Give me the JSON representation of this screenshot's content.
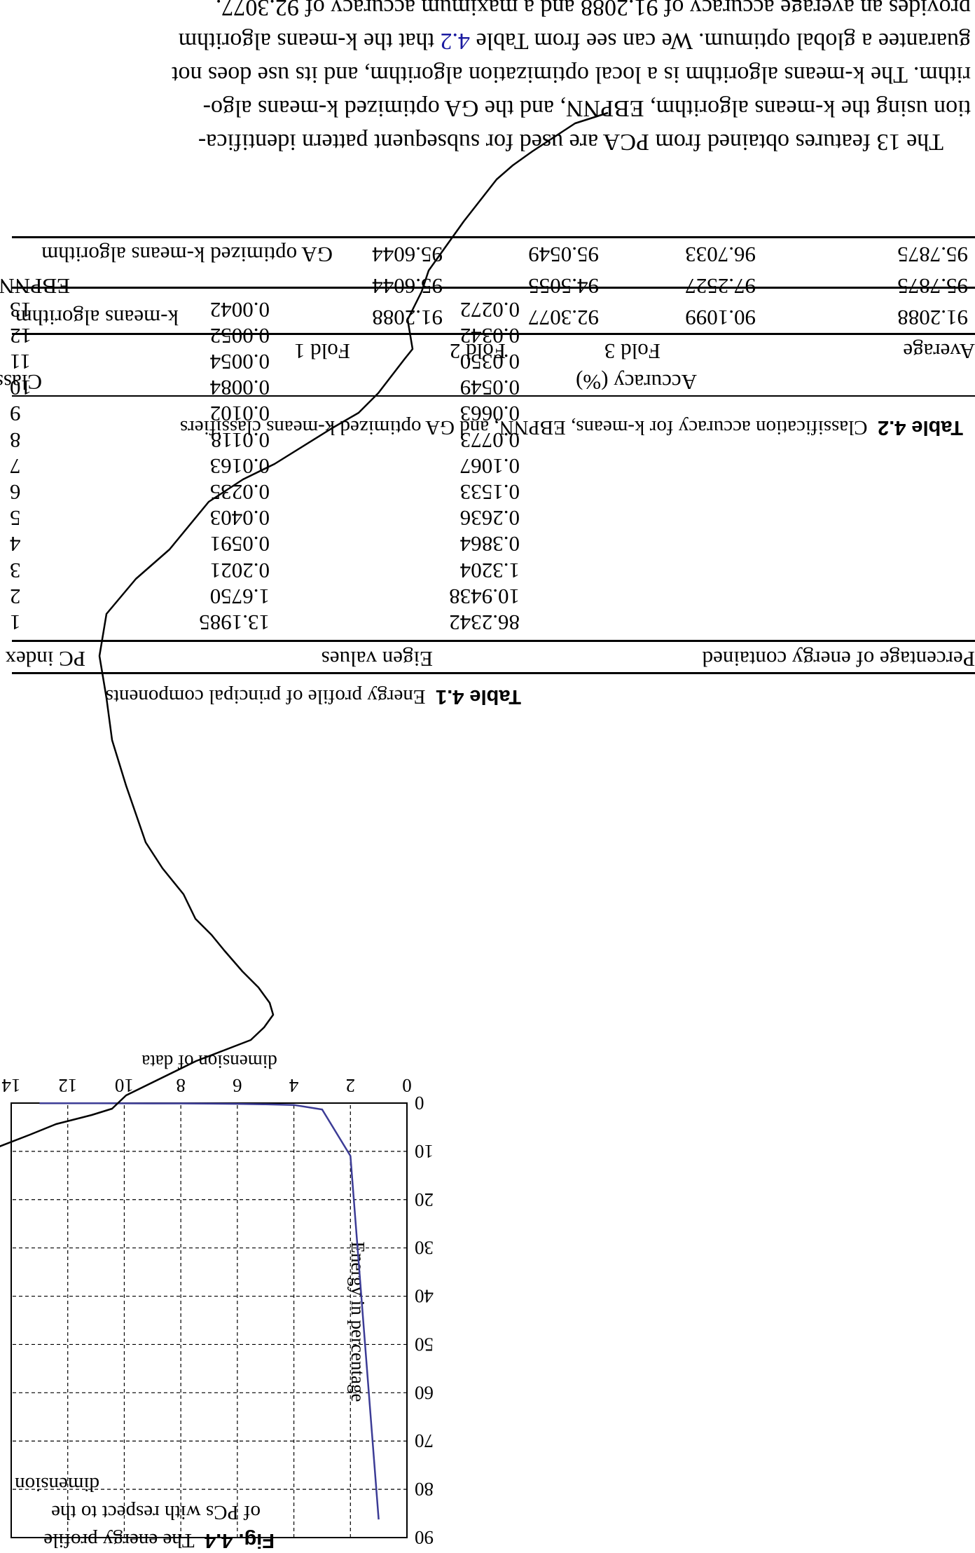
{
  "paragraph": {
    "line1": "The 13 features obtained from PCA are used for subsequent pattern identifica-",
    "line2": "tion using the k-means algorithm, EBPNN, and the GA optimized k-means algo-",
    "line3": "rithm. The k-means algorithm is a local optimization algorithm, and its use does not",
    "line4_pre": "guarantee a global optimum. We can see from Table ",
    "line4_ref": "4.2",
    "line4_post": " that the k-means algorithm",
    "line5": "provides an average accuracy of 91.2088 and a maximum accuracy of 92.3077."
  },
  "table2": {
    "caption_label": "Table 4.2",
    "caption_text": "Classification accuracy for k-means, EBPNN, and GA optimized k-means classifiers",
    "header_classifier": "Classifier",
    "header_accuracy": "Accuracy (%)",
    "subheaders": [
      "Fold 1",
      "Fold 2",
      "Fold 3",
      "Average"
    ],
    "rows": [
      {
        "name": "k-means algorithm",
        "values": [
          "91.2088",
          "92.3077",
          "90.1099",
          "91.2088"
        ]
      },
      {
        "name": "EBPNN",
        "values": [
          "95.6044",
          "94.5055",
          "97.2527",
          "95.7875"
        ]
      },
      {
        "name": "GA optimized k-means algorithm",
        "values": [
          "95.6044",
          "95.0549",
          "96.7033",
          "95.7875"
        ]
      }
    ]
  },
  "table1": {
    "caption_label": "Table 4.1",
    "caption_text": "Energy profile of principal components",
    "headers": [
      "PC index",
      "Eigen values",
      "Percentage of energy contained"
    ],
    "rows": [
      [
        "1",
        "13.1985",
        "86.2342"
      ],
      [
        "2",
        "1.6750",
        "10.9438"
      ],
      [
        "3",
        "0.2021",
        "1.3204"
      ],
      [
        "4",
        "0.0591",
        "0.3864"
      ],
      [
        "5",
        "0.0403",
        "0.2636"
      ],
      [
        "6",
        "0.0235",
        "0.1533"
      ],
      [
        "7",
        "0.0163",
        "0.1067"
      ],
      [
        "8",
        "0.0118",
        "0.0773"
      ],
      [
        "9",
        "0.0102",
        "0.0663"
      ],
      [
        "10",
        "0.0084",
        "0.0549"
      ],
      [
        "11",
        "0.0054",
        "0.0350"
      ],
      [
        "12",
        "0.0052",
        "0.0342"
      ],
      [
        "13",
        "0.0042",
        "0.0272"
      ]
    ]
  },
  "figure": {
    "caption_label": "Fig. 4.4",
    "caption_line1": "The energy profile",
    "caption_line2": "of PCs with respect to the",
    "caption_line3": "dimension"
  },
  "colors": {
    "series_line": "#3c3c96",
    "stray_stroke": "#000000",
    "ref_link": "#1a1aa0"
  },
  "chart_data": {
    "type": "line",
    "title": "",
    "xlabel": "dimension of data",
    "ylabel": "Energy in percentage",
    "xlim": [
      0,
      14
    ],
    "ylim": [
      0,
      90
    ],
    "x_ticks": [
      "0",
      "2",
      "4",
      "6",
      "8",
      "10",
      "12",
      "14"
    ],
    "y_ticks": [
      "0",
      "10",
      "20",
      "30",
      "40",
      "50",
      "60",
      "70",
      "80",
      "90"
    ],
    "grid": true,
    "series": [
      {
        "x": [
          1,
          2,
          3,
          4,
          5,
          6,
          7,
          8,
          9,
          10,
          11,
          12,
          13
        ],
        "y": [
          86.2342,
          10.9438,
          1.3204,
          0.3864,
          0.2636,
          0.1533,
          0.1067,
          0.0773,
          0.0663,
          0.0549,
          0.035,
          0.0342,
          0.0272
        ]
      }
    ]
  }
}
